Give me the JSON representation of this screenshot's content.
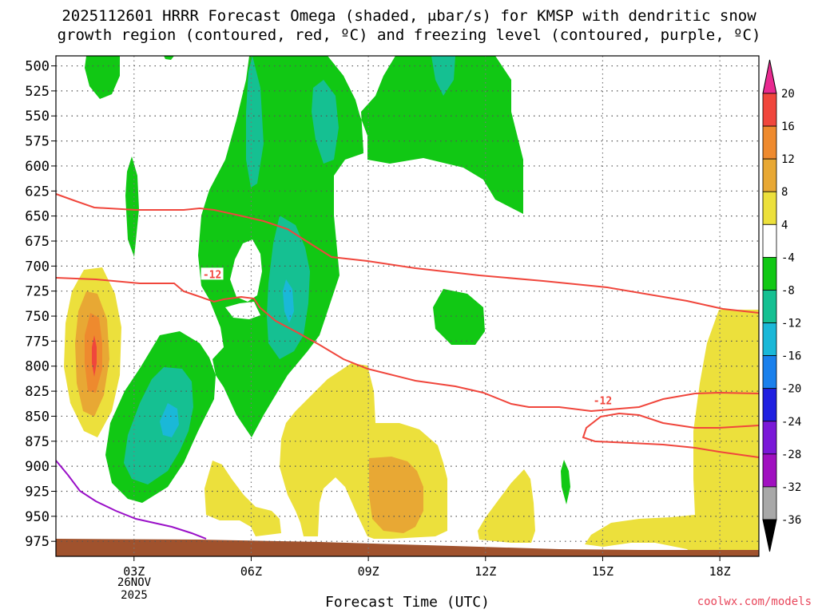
{
  "chart_data": {
    "type": "contour",
    "title_line1": "2025112601 HRRR Forecast Omega (shaded, μbar/s) for KMSP with dendritic snow",
    "title_line2": "growth region (contoured, red, ºC) and freezing level (contoured, purple, ºC)",
    "xlabel": "Forecast Time (UTC)",
    "x_ticks": [
      "03Z",
      "06Z",
      "09Z",
      "12Z",
      "15Z",
      "18Z"
    ],
    "x_tick_hours": [
      3,
      6,
      9,
      12,
      15,
      18
    ],
    "xlim_hours": [
      1,
      19
    ],
    "date_label_line1": "26NOV",
    "date_label_line2": "2025",
    "y_ticks": [
      500,
      525,
      550,
      575,
      600,
      625,
      650,
      675,
      700,
      725,
      750,
      775,
      800,
      825,
      850,
      875,
      900,
      925,
      950,
      975
    ],
    "ylim_hpa": [
      490,
      990
    ],
    "y_direction": "pressure decreasing upward",
    "colorbar": {
      "levels": [
        20,
        16,
        12,
        8,
        4,
        -4,
        -8,
        -12,
        -16,
        -20,
        -24,
        -28,
        -32,
        -36
      ],
      "colors": [
        "#e82a90",
        "#f0463c",
        "#ee8a2e",
        "#e8a834",
        "#ece03c",
        "#ffffff",
        "#11c814",
        "#15c092",
        "#1ab8d8",
        "#1a80ec",
        "#2020e0",
        "#7a18d8",
        "#a010c0",
        "#a8a8a8",
        "#000000"
      ]
    },
    "contour_labels": [
      {
        "text": "-12",
        "hour": 5.0,
        "hpa": 708
      },
      {
        "text": "-12",
        "hour": 15.0,
        "hpa": 834
      }
    ],
    "terrain_color": "#a0522d",
    "credit": "coolwx.com/models"
  }
}
